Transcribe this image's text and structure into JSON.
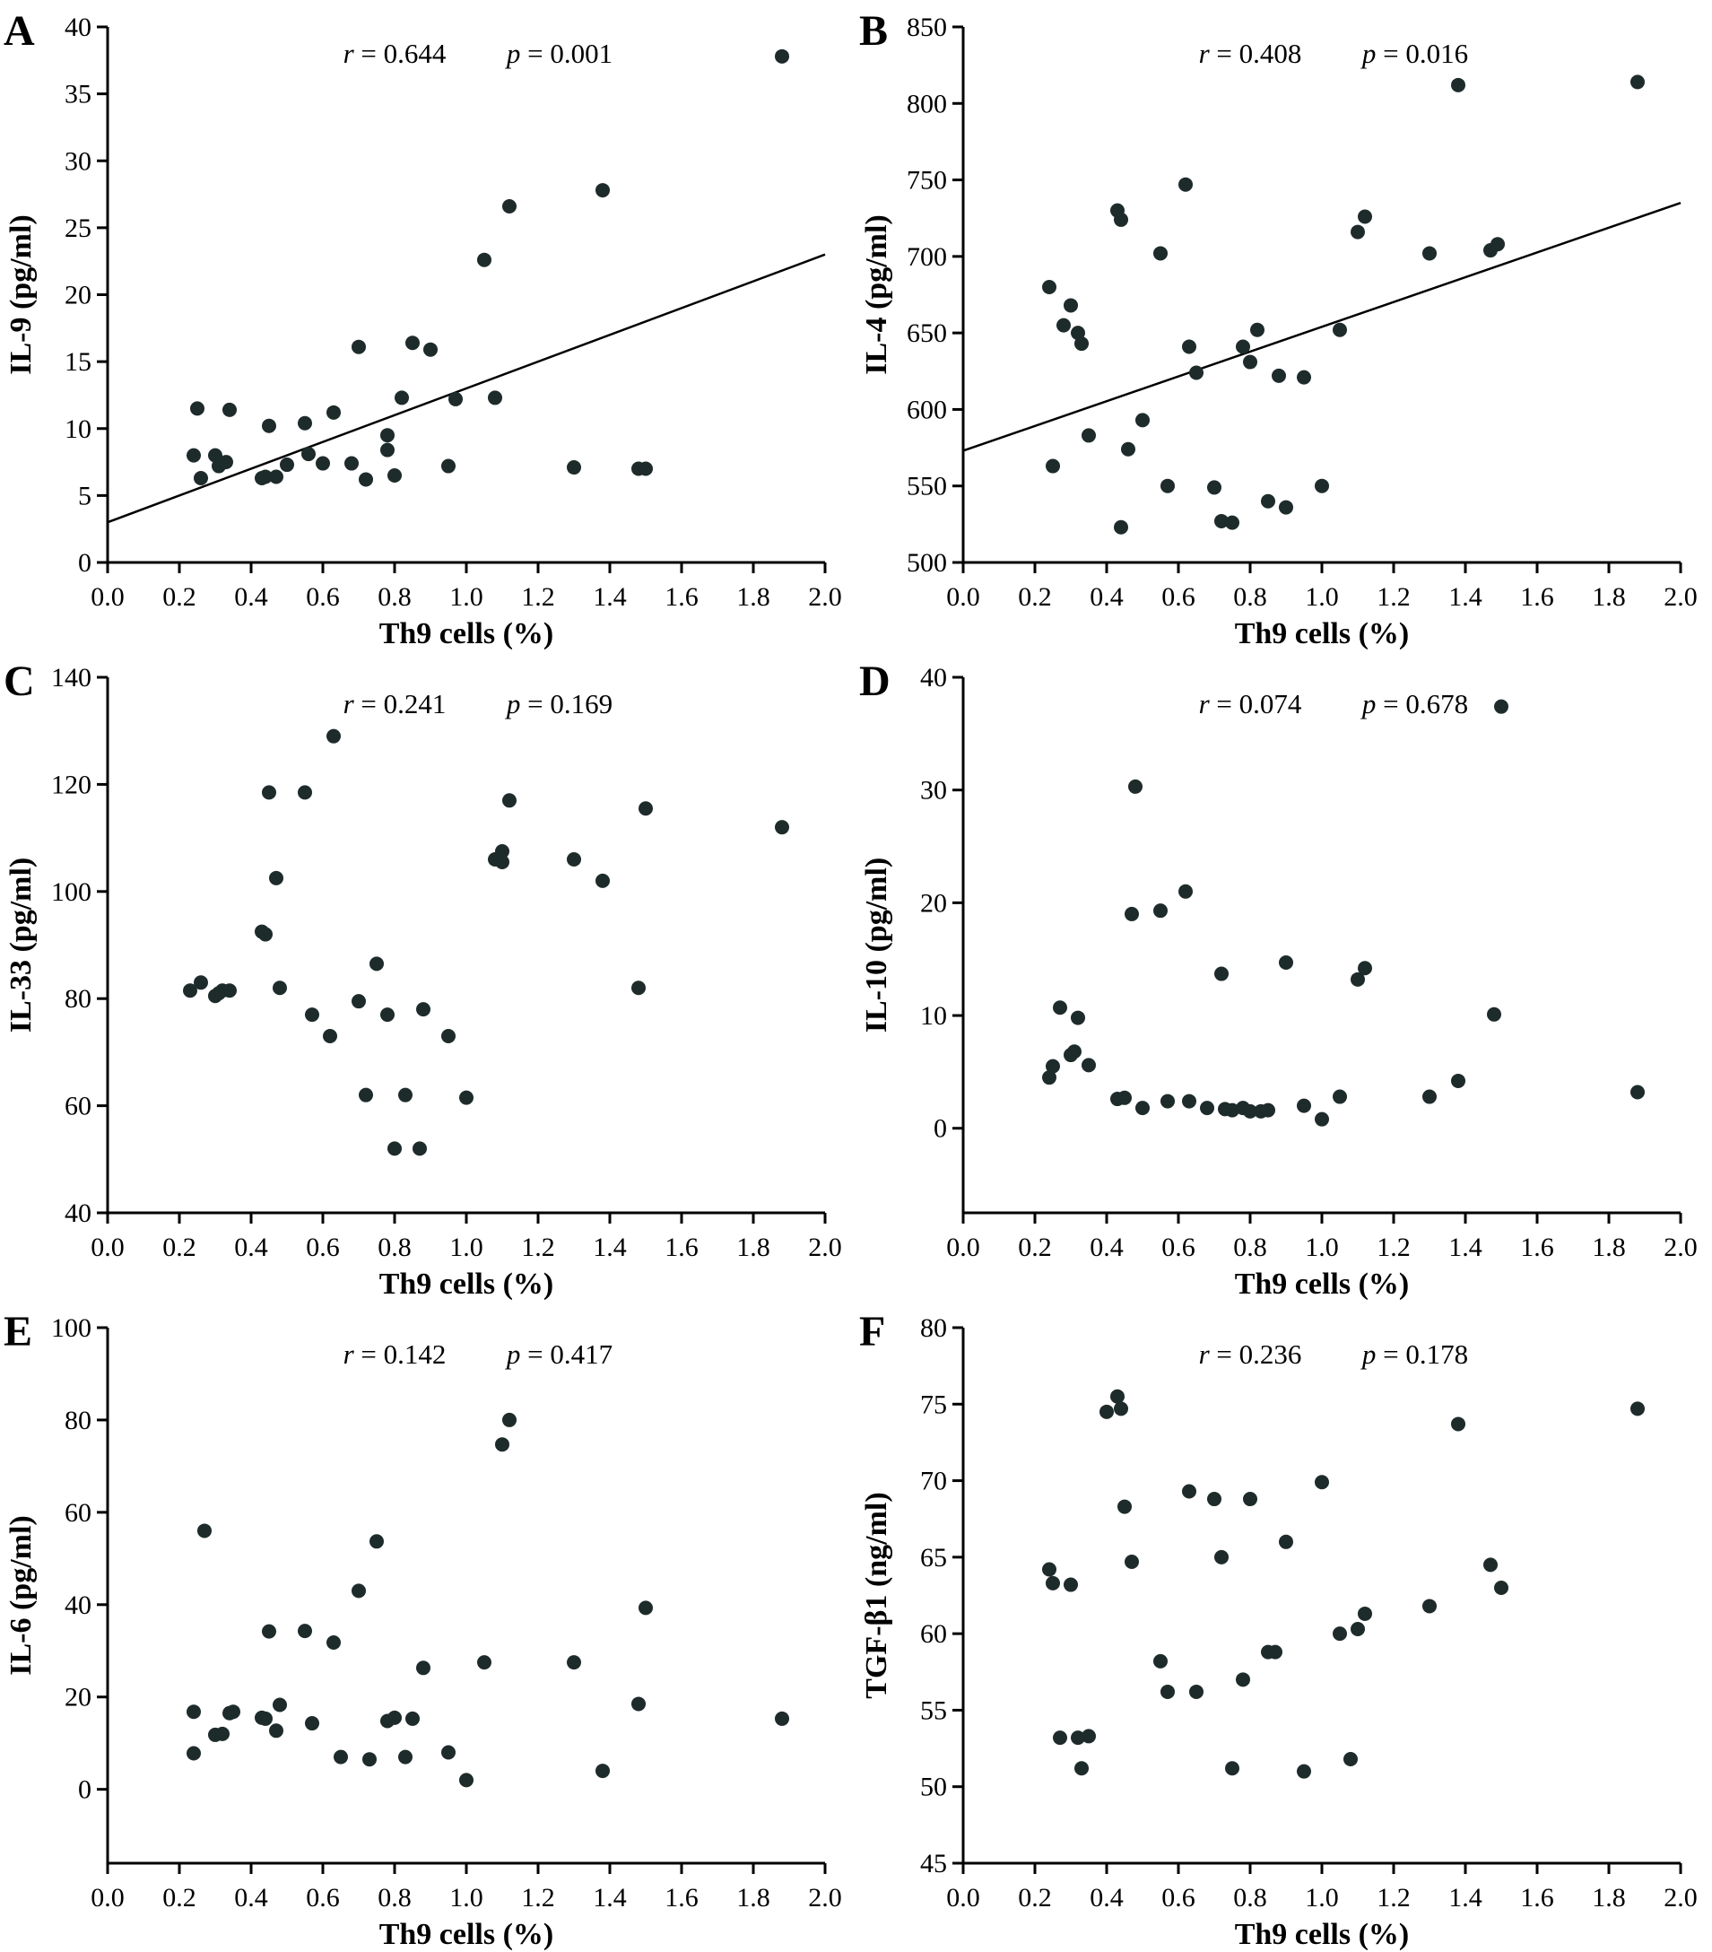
{
  "figure": {
    "bg": "#ffffff",
    "point_color": "#1e2b2b",
    "axis_color": "#000000",
    "point_radius": 8
  },
  "chart_data": [
    {
      "type": "scatter",
      "panel": "A",
      "xlabel": "Th9 cells (%)",
      "ylabel": "IL-9 (pg/ml)",
      "xlim": [
        0.0,
        2.0
      ],
      "ylim": [
        0,
        40
      ],
      "xticks": [
        0.0,
        0.2,
        0.4,
        0.6,
        0.8,
        1.0,
        1.2,
        1.4,
        1.6,
        1.8,
        2.0
      ],
      "xtick_labels": [
        "0.0",
        "0.2",
        "0.4",
        "0.6",
        "0.8",
        "1.0",
        "1.2",
        "1.4",
        "1.6",
        "1.8",
        "2.0"
      ],
      "yticks": [
        0,
        5,
        10,
        15,
        20,
        25,
        30,
        35,
        40
      ],
      "ytick_labels": [
        "0",
        "5",
        "10",
        "15",
        "20",
        "25",
        "30",
        "35",
        "40"
      ],
      "annotation": {
        "r": "r = 0.644",
        "p": "p = 0.001"
      },
      "regression": {
        "x": [
          0.0,
          2.0
        ],
        "y": [
          3.0,
          23.0
        ]
      },
      "points": [
        [
          0.24,
          8.0
        ],
        [
          0.25,
          11.5
        ],
        [
          0.26,
          6.3
        ],
        [
          0.3,
          8.0
        ],
        [
          0.31,
          7.2
        ],
        [
          0.33,
          7.5
        ],
        [
          0.34,
          11.4
        ],
        [
          0.43,
          6.3
        ],
        [
          0.44,
          6.4
        ],
        [
          0.45,
          10.2
        ],
        [
          0.47,
          6.4
        ],
        [
          0.5,
          7.3
        ],
        [
          0.55,
          10.4
        ],
        [
          0.56,
          8.1
        ],
        [
          0.6,
          7.4
        ],
        [
          0.63,
          11.2
        ],
        [
          0.68,
          7.4
        ],
        [
          0.7,
          16.1
        ],
        [
          0.72,
          6.2
        ],
        [
          0.78,
          9.5
        ],
        [
          0.78,
          8.4
        ],
        [
          0.8,
          6.5
        ],
        [
          0.82,
          12.3
        ],
        [
          0.85,
          16.4
        ],
        [
          0.9,
          15.9
        ],
        [
          0.95,
          7.2
        ],
        [
          0.97,
          12.2
        ],
        [
          1.05,
          22.6
        ],
        [
          1.08,
          12.3
        ],
        [
          1.12,
          26.6
        ],
        [
          1.3,
          7.1
        ],
        [
          1.38,
          27.8
        ],
        [
          1.48,
          7.0
        ],
        [
          1.5,
          7.0
        ],
        [
          1.88,
          37.8
        ]
      ]
    },
    {
      "type": "scatter",
      "panel": "B",
      "xlabel": "Th9 cells (%)",
      "ylabel": "IL-4 (pg/ml)",
      "xlim": [
        0.0,
        2.0
      ],
      "ylim": [
        500,
        850
      ],
      "xticks": [
        0.0,
        0.2,
        0.4,
        0.6,
        0.8,
        1.0,
        1.2,
        1.4,
        1.6,
        1.8,
        2.0
      ],
      "xtick_labels": [
        "0.0",
        "0.2",
        "0.4",
        "0.6",
        "0.8",
        "1.0",
        "1.2",
        "1.4",
        "1.6",
        "1.8",
        "2.0"
      ],
      "yticks": [
        500,
        550,
        600,
        650,
        700,
        750,
        800,
        850
      ],
      "ytick_labels": [
        "500",
        "550",
        "600",
        "650",
        "700",
        "750",
        "800",
        "850"
      ],
      "annotation": {
        "r": "r = 0.408",
        "p": "p = 0.016"
      },
      "regression": {
        "x": [
          0.0,
          2.0
        ],
        "y": [
          573,
          735
        ]
      },
      "points": [
        [
          0.24,
          680
        ],
        [
          0.25,
          563
        ],
        [
          0.28,
          655
        ],
        [
          0.3,
          668
        ],
        [
          0.32,
          650
        ],
        [
          0.33,
          643
        ],
        [
          0.35,
          583
        ],
        [
          0.43,
          730
        ],
        [
          0.44,
          724
        ],
        [
          0.44,
          523
        ],
        [
          0.46,
          574
        ],
        [
          0.5,
          593
        ],
        [
          0.55,
          702
        ],
        [
          0.57,
          550
        ],
        [
          0.62,
          747
        ],
        [
          0.63,
          641
        ],
        [
          0.65,
          624
        ],
        [
          0.7,
          549
        ],
        [
          0.72,
          527
        ],
        [
          0.75,
          526
        ],
        [
          0.78,
          641
        ],
        [
          0.8,
          631
        ],
        [
          0.82,
          652
        ],
        [
          0.85,
          540
        ],
        [
          0.88,
          622
        ],
        [
          0.9,
          536
        ],
        [
          0.95,
          621
        ],
        [
          1.0,
          550
        ],
        [
          1.05,
          652
        ],
        [
          1.1,
          716
        ],
        [
          1.12,
          726
        ],
        [
          1.3,
          702
        ],
        [
          1.38,
          812
        ],
        [
          1.47,
          704
        ],
        [
          1.49,
          708
        ],
        [
          1.88,
          814
        ]
      ]
    },
    {
      "type": "scatter",
      "panel": "C",
      "xlabel": "Th9 cells (%)",
      "ylabel": "IL-33 (pg/ml)",
      "xlim": [
        0.0,
        2.0
      ],
      "ylim": [
        40,
        140
      ],
      "xticks": [
        0.0,
        0.2,
        0.4,
        0.6,
        0.8,
        1.0,
        1.2,
        1.4,
        1.6,
        1.8,
        2.0
      ],
      "xtick_labels": [
        "0.0",
        "0.2",
        "0.4",
        "0.6",
        "0.8",
        "1.0",
        "1.2",
        "1.4",
        "1.6",
        "1.8",
        "2.0"
      ],
      "yticks": [
        40,
        60,
        80,
        100,
        120,
        140
      ],
      "ytick_labels": [
        "40",
        "60",
        "80",
        "100",
        "120",
        "140"
      ],
      "annotation": {
        "r": "r = 0.241",
        "p": "p = 0.169"
      },
      "points": [
        [
          0.23,
          81.5
        ],
        [
          0.26,
          83
        ],
        [
          0.3,
          80.5
        ],
        [
          0.31,
          81
        ],
        [
          0.32,
          81.5
        ],
        [
          0.34,
          81.5
        ],
        [
          0.43,
          92.5
        ],
        [
          0.44,
          92
        ],
        [
          0.45,
          118.5
        ],
        [
          0.47,
          102.5
        ],
        [
          0.48,
          82
        ],
        [
          0.55,
          118.5
        ],
        [
          0.57,
          77
        ],
        [
          0.62,
          73
        ],
        [
          0.63,
          129
        ],
        [
          0.7,
          79.5
        ],
        [
          0.72,
          62
        ],
        [
          0.75,
          86.5
        ],
        [
          0.78,
          77
        ],
        [
          0.8,
          52
        ],
        [
          0.83,
          62
        ],
        [
          0.87,
          52
        ],
        [
          0.88,
          78
        ],
        [
          0.95,
          73
        ],
        [
          1.0,
          61.5
        ],
        [
          1.08,
          106
        ],
        [
          1.1,
          105.5
        ],
        [
          1.1,
          107.5
        ],
        [
          1.12,
          117
        ],
        [
          1.3,
          106
        ],
        [
          1.38,
          102
        ],
        [
          1.48,
          82
        ],
        [
          1.5,
          115.5
        ],
        [
          1.88,
          112
        ]
      ]
    },
    {
      "type": "scatter",
      "panel": "D",
      "xlabel": "Th9 cells (%)",
      "ylabel": "IL-10 (pg/ml)",
      "xlim": [
        0.0,
        2.0
      ],
      "ylim": [
        -7.5,
        40
      ],
      "xticks": [
        0.0,
        0.2,
        0.4,
        0.6,
        0.8,
        1.0,
        1.2,
        1.4,
        1.6,
        1.8,
        2.0
      ],
      "xtick_labels": [
        "0.0",
        "0.2",
        "0.4",
        "0.6",
        "0.8",
        "1.0",
        "1.2",
        "1.4",
        "1.6",
        "1.8",
        "2.0"
      ],
      "yticks": [
        0,
        10,
        20,
        30,
        40
      ],
      "ytick_labels": [
        "0",
        "10",
        "20",
        "30",
        "40"
      ],
      "annotation": {
        "r": "r = 0.074",
        "p": "p = 0.678"
      },
      "points": [
        [
          0.24,
          4.5
        ],
        [
          0.25,
          5.5
        ],
        [
          0.27,
          10.7
        ],
        [
          0.3,
          6.5
        ],
        [
          0.31,
          6.8
        ],
        [
          0.32,
          9.8
        ],
        [
          0.35,
          5.6
        ],
        [
          0.43,
          2.6
        ],
        [
          0.45,
          2.7
        ],
        [
          0.47,
          19.0
        ],
        [
          0.48,
          30.3
        ],
        [
          0.5,
          1.8
        ],
        [
          0.55,
          19.3
        ],
        [
          0.57,
          2.4
        ],
        [
          0.62,
          21.0
        ],
        [
          0.63,
          2.4
        ],
        [
          0.68,
          1.8
        ],
        [
          0.72,
          13.7
        ],
        [
          0.73,
          1.7
        ],
        [
          0.75,
          1.6
        ],
        [
          0.78,
          1.8
        ],
        [
          0.8,
          1.5
        ],
        [
          0.83,
          1.5
        ],
        [
          0.85,
          1.6
        ],
        [
          0.9,
          14.7
        ],
        [
          0.95,
          2.0
        ],
        [
          1.0,
          0.8
        ],
        [
          1.05,
          2.8
        ],
        [
          1.1,
          13.2
        ],
        [
          1.12,
          14.2
        ],
        [
          1.3,
          2.8
        ],
        [
          1.38,
          4.2
        ],
        [
          1.48,
          10.1
        ],
        [
          1.5,
          37.4
        ],
        [
          1.88,
          3.2
        ]
      ]
    },
    {
      "type": "scatter",
      "panel": "E",
      "xlabel": "Th9 cells (%)",
      "ylabel": "IL-6 (pg/ml)",
      "xlim": [
        0.0,
        2.0
      ],
      "ylim": [
        -16,
        100
      ],
      "xticks": [
        0.0,
        0.2,
        0.4,
        0.6,
        0.8,
        1.0,
        1.2,
        1.4,
        1.6,
        1.8,
        2.0
      ],
      "xtick_labels": [
        "0.0",
        "0.2",
        "0.4",
        "0.6",
        "0.8",
        "1.0",
        "1.2",
        "1.4",
        "1.6",
        "1.8",
        "2.0"
      ],
      "yticks": [
        0,
        20,
        40,
        60,
        80,
        100
      ],
      "ytick_labels": [
        "0",
        "20",
        "40",
        "60",
        "80",
        "100"
      ],
      "annotation": {
        "r": "r = 0.142",
        "p": "p = 0.417"
      },
      "points": [
        [
          0.24,
          16.8
        ],
        [
          0.24,
          7.8
        ],
        [
          0.27,
          56.0
        ],
        [
          0.3,
          11.8
        ],
        [
          0.32,
          12.0
        ],
        [
          0.34,
          16.5
        ],
        [
          0.35,
          16.8
        ],
        [
          0.43,
          15.5
        ],
        [
          0.44,
          15.3
        ],
        [
          0.45,
          34.2
        ],
        [
          0.47,
          12.7
        ],
        [
          0.48,
          18.3
        ],
        [
          0.55,
          34.3
        ],
        [
          0.57,
          14.3
        ],
        [
          0.63,
          31.8
        ],
        [
          0.65,
          7.0
        ],
        [
          0.7,
          43.0
        ],
        [
          0.73,
          6.5
        ],
        [
          0.75,
          53.7
        ],
        [
          0.78,
          14.8
        ],
        [
          0.8,
          15.5
        ],
        [
          0.83,
          7.0
        ],
        [
          0.85,
          15.3
        ],
        [
          0.88,
          26.3
        ],
        [
          0.95,
          8.0
        ],
        [
          1.0,
          2.0
        ],
        [
          1.05,
          27.5
        ],
        [
          1.1,
          74.7
        ],
        [
          1.12,
          80.0
        ],
        [
          1.3,
          27.5
        ],
        [
          1.38,
          4.0
        ],
        [
          1.48,
          18.5
        ],
        [
          1.5,
          39.3
        ],
        [
          1.88,
          15.3
        ]
      ]
    },
    {
      "type": "scatter",
      "panel": "F",
      "xlabel": "Th9 cells (%)",
      "ylabel": "TGF-β1 (ng/ml)",
      "xlim": [
        0.0,
        2.0
      ],
      "ylim": [
        45,
        80
      ],
      "xticks": [
        0.0,
        0.2,
        0.4,
        0.6,
        0.8,
        1.0,
        1.2,
        1.4,
        1.6,
        1.8,
        2.0
      ],
      "xtick_labels": [
        "0.0",
        "0.2",
        "0.4",
        "0.6",
        "0.8",
        "1.0",
        "1.2",
        "1.4",
        "1.6",
        "1.8",
        "2.0"
      ],
      "yticks": [
        45,
        50,
        55,
        60,
        65,
        70,
        75,
        80
      ],
      "ytick_labels": [
        "45",
        "50",
        "55",
        "60",
        "65",
        "70",
        "75",
        "80"
      ],
      "annotation": {
        "r": "r = 0.236",
        "p": "p = 0.178"
      },
      "points": [
        [
          0.24,
          64.2
        ],
        [
          0.25,
          63.3
        ],
        [
          0.27,
          53.2
        ],
        [
          0.3,
          63.2
        ],
        [
          0.32,
          53.2
        ],
        [
          0.33,
          51.2
        ],
        [
          0.35,
          53.3
        ],
        [
          0.4,
          74.5
        ],
        [
          0.43,
          75.5
        ],
        [
          0.44,
          74.7
        ],
        [
          0.45,
          68.3
        ],
        [
          0.47,
          64.7
        ],
        [
          0.55,
          58.2
        ],
        [
          0.57,
          56.2
        ],
        [
          0.63,
          69.3
        ],
        [
          0.65,
          56.2
        ],
        [
          0.7,
          68.8
        ],
        [
          0.72,
          65.0
        ],
        [
          0.75,
          51.2
        ],
        [
          0.78,
          57.0
        ],
        [
          0.8,
          68.8
        ],
        [
          0.85,
          58.8
        ],
        [
          0.87,
          58.8
        ],
        [
          0.9,
          66.0
        ],
        [
          0.95,
          51.0
        ],
        [
          1.0,
          69.9
        ],
        [
          1.05,
          60.0
        ],
        [
          1.08,
          51.8
        ],
        [
          1.1,
          60.3
        ],
        [
          1.12,
          61.3
        ],
        [
          1.3,
          61.8
        ],
        [
          1.38,
          73.7
        ],
        [
          1.47,
          64.5
        ],
        [
          1.5,
          63.0
        ],
        [
          1.88,
          74.7
        ]
      ]
    }
  ]
}
